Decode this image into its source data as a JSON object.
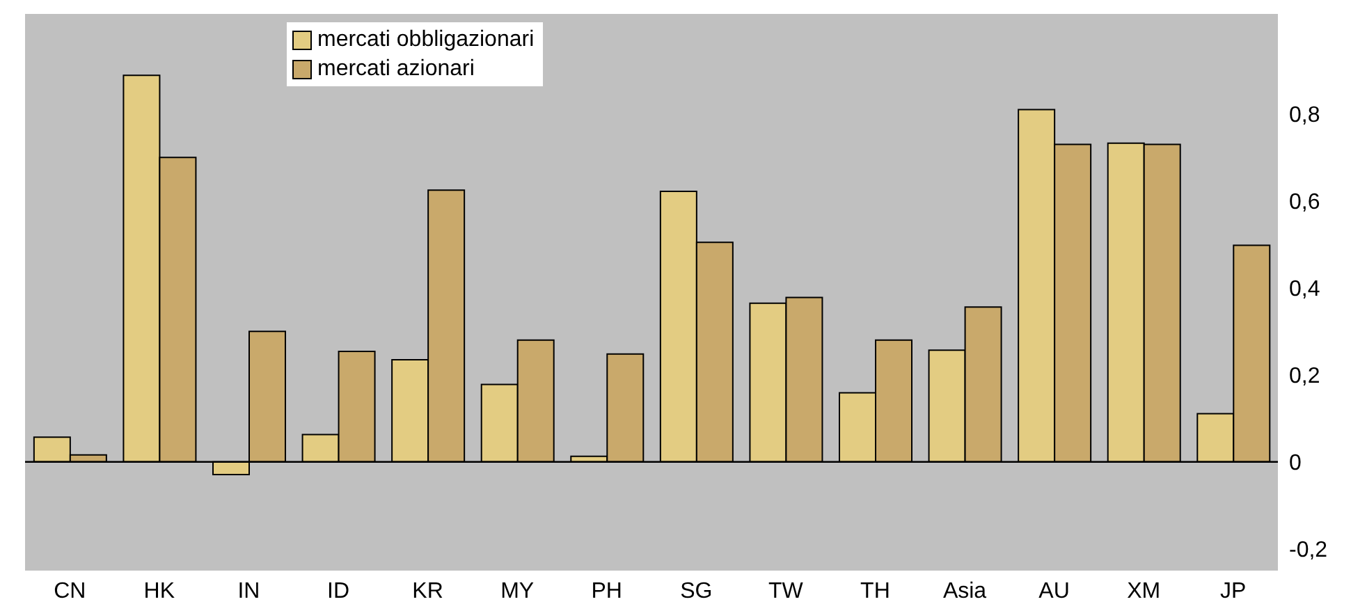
{
  "chart_data": {
    "type": "bar",
    "categories": [
      "CN",
      "HK",
      "IN",
      "ID",
      "KR",
      "MY",
      "PH",
      "SG",
      "TW",
      "TH",
      "Asia",
      "AU",
      "XM",
      "JP"
    ],
    "series": [
      {
        "name": "mercati obbligazionari",
        "color": "#e3cc82",
        "values": [
          0.057,
          0.889,
          -0.029,
          0.063,
          0.235,
          0.178,
          0.013,
          0.622,
          0.365,
          0.159,
          0.257,
          0.81,
          0.733,
          0.111
        ]
      },
      {
        "name": "mercati azionari",
        "color": "#c9a96b",
        "values": [
          0.016,
          0.7,
          0.3,
          0.254,
          0.625,
          0.28,
          0.248,
          0.505,
          0.378,
          0.28,
          0.356,
          0.73,
          0.73,
          0.498
        ]
      }
    ],
    "ylim": [
      -0.25,
      1.03
    ],
    "yticks": [
      {
        "value": -0.2,
        "label": "-0,2"
      },
      {
        "value": 0,
        "label": "0"
      },
      {
        "value": 0.2,
        "label": "0,2"
      },
      {
        "value": 0.4,
        "label": "0,4"
      },
      {
        "value": 0.6,
        "label": "0,6"
      },
      {
        "value": 0.8,
        "label": "0,8"
      }
    ],
    "legend": "top",
    "ref_lines": [
      {
        "axis": "y",
        "value": 0,
        "color": "#000000"
      }
    ]
  }
}
